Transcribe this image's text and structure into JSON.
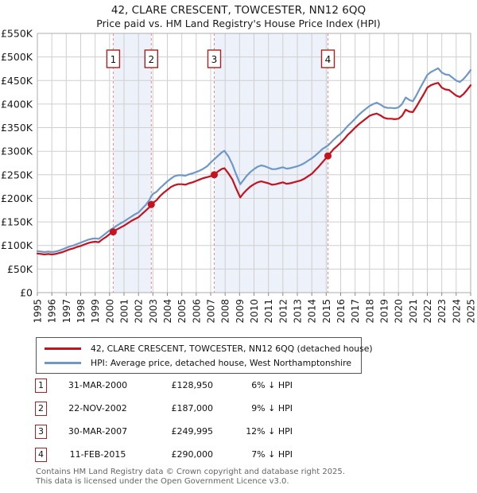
{
  "title": "42, CLARE CRESCENT, TOWCESTER, NN12 6QQ",
  "subtitle": "Price paid vs. HM Land Registry's House Price Index (HPI)",
  "legend": {
    "series1": "42, CLARE CRESCENT, TOWCESTER, NN12 6QQ (detached house)",
    "series2": "HPI: Average price, detached house, West Northamptonshire"
  },
  "transactions": [
    {
      "num": "1",
      "date": "31-MAR-2000",
      "price": "£128,950",
      "hpi_diff": "6% ↓ HPI"
    },
    {
      "num": "2",
      "date": "22-NOV-2002",
      "price": "£187,000",
      "hpi_diff": "9% ↓ HPI"
    },
    {
      "num": "3",
      "date": "30-MAR-2007",
      "price": "£249,995",
      "hpi_diff": "12% ↓ HPI"
    },
    {
      "num": "4",
      "date": "11-FEB-2015",
      "price": "£290,000",
      "hpi_diff": "7% ↓ HPI"
    }
  ],
  "footer": {
    "line1": "Contains HM Land Registry data © Crown copyright and database right 2025.",
    "line2": "This data is licensed under the Open Government Licence v3.0."
  },
  "chart_data": {
    "type": "line",
    "title": "42, CLARE CRESCENT, TOWCESTER, NN12 6QQ — Price paid vs. HM Land Registry's House Price Index (HPI)",
    "x_range": [
      1995,
      2025
    ],
    "y_range": [
      0,
      550
    ],
    "y_unit": "£ thousands",
    "grid": true,
    "legend_position": "below",
    "x_ticks": [
      1995,
      1996,
      1997,
      1998,
      1999,
      2000,
      2001,
      2002,
      2003,
      2004,
      2005,
      2006,
      2007,
      2008,
      2009,
      2010,
      2011,
      2012,
      2013,
      2014,
      2015,
      2016,
      2017,
      2018,
      2019,
      2020,
      2021,
      2022,
      2023,
      2024,
      2025
    ],
    "y_ticks": [
      {
        "value": 0,
        "label": "£0"
      },
      {
        "value": 50,
        "label": "£50K"
      },
      {
        "value": 100,
        "label": "£100K"
      },
      {
        "value": 150,
        "label": "£150K"
      },
      {
        "value": 200,
        "label": "£200K"
      },
      {
        "value": 250,
        "label": "£250K"
      },
      {
        "value": 300,
        "label": "£300K"
      },
      {
        "value": 350,
        "label": "£350K"
      },
      {
        "value": 400,
        "label": "£400K"
      },
      {
        "value": 450,
        "label": "£450K"
      },
      {
        "value": 500,
        "label": "£500K"
      },
      {
        "value": 550,
        "label": "£550K"
      }
    ],
    "colors": {
      "price": "#c5121f",
      "hpi": "#6e98c8",
      "sale_line": "#ea8a8a",
      "band": "#edf1fa",
      "grid": "#cfcfcf",
      "border": "#adadad",
      "badge": "#a92222"
    },
    "shaded_spans": [
      [
        2000.25,
        2002.89
      ],
      [
        2007.25,
        2015.12
      ]
    ],
    "sales": [
      {
        "label": "1",
        "year": 2000.25,
        "price_k": 128.95,
        "date": "31-MAR-2000",
        "pct_below_hpi": "6%"
      },
      {
        "label": "2",
        "year": 2002.89,
        "price_k": 187.0,
        "date": "22-NOV-2002",
        "pct_below_hpi": "9%"
      },
      {
        "label": "3",
        "year": 2007.25,
        "price_k": 249.995,
        "date": "30-MAR-2007",
        "pct_below_hpi": "12%"
      },
      {
        "label": "4",
        "year": 2015.12,
        "price_k": 290.0,
        "date": "11-FEB-2015",
        "pct_below_hpi": "7%"
      }
    ],
    "series": [
      {
        "id": "hpi",
        "name": "HPI: Average price, detached house, West Northamptonshire",
        "color": "#6e98c8",
        "points": [
          [
            1995.0,
            88
          ],
          [
            1995.25,
            87
          ],
          [
            1995.5,
            86
          ],
          [
            1995.75,
            87
          ],
          [
            1996.0,
            86
          ],
          [
            1996.25,
            87
          ],
          [
            1996.5,
            89
          ],
          [
            1996.75,
            92
          ],
          [
            1997.0,
            95
          ],
          [
            1997.25,
            98
          ],
          [
            1997.5,
            100
          ],
          [
            1997.75,
            103
          ],
          [
            1998.0,
            106
          ],
          [
            1998.25,
            109
          ],
          [
            1998.5,
            112
          ],
          [
            1998.75,
            114
          ],
          [
            1999.0,
            115
          ],
          [
            1999.25,
            114
          ],
          [
            1999.5,
            120
          ],
          [
            1999.75,
            126
          ],
          [
            2000.0,
            132
          ],
          [
            2000.25,
            137
          ],
          [
            2000.5,
            142
          ],
          [
            2000.75,
            147
          ],
          [
            2001.0,
            151
          ],
          [
            2001.25,
            156
          ],
          [
            2001.5,
            161
          ],
          [
            2001.75,
            166
          ],
          [
            2002.0,
            170
          ],
          [
            2002.25,
            178
          ],
          [
            2002.5,
            186
          ],
          [
            2002.75,
            196
          ],
          [
            2002.89,
            205
          ],
          [
            2003.0,
            209
          ],
          [
            2003.25,
            214
          ],
          [
            2003.5,
            222
          ],
          [
            2003.75,
            229
          ],
          [
            2004.0,
            236
          ],
          [
            2004.25,
            242
          ],
          [
            2004.5,
            247
          ],
          [
            2004.75,
            249
          ],
          [
            2005.0,
            249
          ],
          [
            2005.25,
            248
          ],
          [
            2005.5,
            251
          ],
          [
            2005.75,
            253
          ],
          [
            2006.0,
            256
          ],
          [
            2006.25,
            259
          ],
          [
            2006.5,
            263
          ],
          [
            2006.75,
            268
          ],
          [
            2007.0,
            276
          ],
          [
            2007.25,
            283
          ],
          [
            2007.5,
            290
          ],
          [
            2007.75,
            297
          ],
          [
            2007.95,
            301
          ],
          [
            2008.25,
            288
          ],
          [
            2008.5,
            272
          ],
          [
            2008.75,
            252
          ],
          [
            2009.05,
            230
          ],
          [
            2009.25,
            238
          ],
          [
            2009.5,
            248
          ],
          [
            2009.75,
            256
          ],
          [
            2010.0,
            262
          ],
          [
            2010.25,
            267
          ],
          [
            2010.5,
            270
          ],
          [
            2010.75,
            268
          ],
          [
            2011.0,
            265
          ],
          [
            2011.25,
            262
          ],
          [
            2011.5,
            262
          ],
          [
            2011.75,
            264
          ],
          [
            2012.0,
            266
          ],
          [
            2012.25,
            263
          ],
          [
            2012.5,
            264
          ],
          [
            2012.75,
            266
          ],
          [
            2013.0,
            268
          ],
          [
            2013.25,
            271
          ],
          [
            2013.5,
            275
          ],
          [
            2013.75,
            280
          ],
          [
            2014.0,
            285
          ],
          [
            2014.25,
            291
          ],
          [
            2014.5,
            298
          ],
          [
            2014.75,
            305
          ],
          [
            2015.12,
            312
          ],
          [
            2015.5,
            324
          ],
          [
            2015.75,
            331
          ],
          [
            2016.0,
            337
          ],
          [
            2016.25,
            345
          ],
          [
            2016.5,
            354
          ],
          [
            2016.75,
            361
          ],
          [
            2017.0,
            369
          ],
          [
            2017.25,
            377
          ],
          [
            2017.5,
            384
          ],
          [
            2017.75,
            390
          ],
          [
            2018.0,
            396
          ],
          [
            2018.25,
            400
          ],
          [
            2018.5,
            403
          ],
          [
            2018.75,
            399
          ],
          [
            2019.0,
            394
          ],
          [
            2019.25,
            392
          ],
          [
            2019.5,
            392
          ],
          [
            2019.75,
            391
          ],
          [
            2020.0,
            393
          ],
          [
            2020.25,
            400
          ],
          [
            2020.5,
            414
          ],
          [
            2020.75,
            409
          ],
          [
            2021.0,
            406
          ],
          [
            2021.25,
            419
          ],
          [
            2021.5,
            434
          ],
          [
            2021.75,
            448
          ],
          [
            2022.0,
            462
          ],
          [
            2022.25,
            468
          ],
          [
            2022.5,
            472
          ],
          [
            2022.75,
            476
          ],
          [
            2023.0,
            467
          ],
          [
            2023.25,
            463
          ],
          [
            2023.5,
            462
          ],
          [
            2023.75,
            456
          ],
          [
            2024.0,
            450
          ],
          [
            2024.25,
            447
          ],
          [
            2024.5,
            453
          ],
          [
            2024.75,
            462
          ],
          [
            2025.0,
            472
          ]
        ]
      },
      {
        "id": "price-paid",
        "name": "42, CLARE CRESCENT, TOWCESTER, NN12 6QQ (detached house)",
        "color": "#c5121f",
        "points": [
          [
            1995.0,
            83
          ],
          [
            1995.25,
            82
          ],
          [
            1995.5,
            81
          ],
          [
            1995.75,
            82
          ],
          [
            1996.0,
            81
          ],
          [
            1996.25,
            82
          ],
          [
            1996.5,
            84
          ],
          [
            1996.75,
            86
          ],
          [
            1997.0,
            89
          ],
          [
            1997.25,
            92
          ],
          [
            1997.5,
            94
          ],
          [
            1997.75,
            97
          ],
          [
            1998.0,
            99
          ],
          [
            1998.25,
            102
          ],
          [
            1998.5,
            105
          ],
          [
            1998.75,
            107
          ],
          [
            1999.0,
            108
          ],
          [
            1999.25,
            107
          ],
          [
            1999.5,
            113
          ],
          [
            1999.75,
            118
          ],
          [
            2000.0,
            124
          ],
          [
            2000.25,
            128.95
          ],
          [
            2000.5,
            134
          ],
          [
            2000.75,
            138
          ],
          [
            2001.0,
            142
          ],
          [
            2001.25,
            147
          ],
          [
            2001.5,
            152
          ],
          [
            2001.75,
            156
          ],
          [
            2002.0,
            160
          ],
          [
            2002.25,
            167
          ],
          [
            2002.5,
            174
          ],
          [
            2002.75,
            181
          ],
          [
            2002.89,
            187
          ],
          [
            2003.0,
            190
          ],
          [
            2003.25,
            196
          ],
          [
            2003.5,
            205
          ],
          [
            2003.75,
            212
          ],
          [
            2004.0,
            218
          ],
          [
            2004.25,
            224
          ],
          [
            2004.5,
            228
          ],
          [
            2004.75,
            230
          ],
          [
            2005.0,
            230
          ],
          [
            2005.25,
            229
          ],
          [
            2005.5,
            232
          ],
          [
            2005.75,
            234
          ],
          [
            2006.0,
            237
          ],
          [
            2006.25,
            240
          ],
          [
            2006.5,
            243
          ],
          [
            2006.75,
            245
          ],
          [
            2007.0,
            247
          ],
          [
            2007.25,
            249.995
          ],
          [
            2007.5,
            257
          ],
          [
            2007.75,
            262
          ],
          [
            2007.95,
            264
          ],
          [
            2008.25,
            252
          ],
          [
            2008.5,
            240
          ],
          [
            2008.75,
            222
          ],
          [
            2009.05,
            202
          ],
          [
            2009.25,
            210
          ],
          [
            2009.5,
            218
          ],
          [
            2009.75,
            225
          ],
          [
            2010.0,
            230
          ],
          [
            2010.25,
            234
          ],
          [
            2010.5,
            236
          ],
          [
            2010.75,
            234
          ],
          [
            2011.0,
            232
          ],
          [
            2011.25,
            229
          ],
          [
            2011.5,
            230
          ],
          [
            2011.75,
            232
          ],
          [
            2012.0,
            234
          ],
          [
            2012.25,
            231
          ],
          [
            2012.5,
            232
          ],
          [
            2012.75,
            234
          ],
          [
            2013.0,
            236
          ],
          [
            2013.25,
            238
          ],
          [
            2013.5,
            242
          ],
          [
            2013.75,
            247
          ],
          [
            2014.0,
            252
          ],
          [
            2014.25,
            260
          ],
          [
            2014.5,
            268
          ],
          [
            2014.75,
            277
          ],
          [
            2015.12,
            290
          ],
          [
            2015.5,
            304
          ],
          [
            2015.75,
            311
          ],
          [
            2016.0,
            318
          ],
          [
            2016.25,
            326
          ],
          [
            2016.5,
            335
          ],
          [
            2016.75,
            342
          ],
          [
            2017.0,
            350
          ],
          [
            2017.25,
            357
          ],
          [
            2017.5,
            363
          ],
          [
            2017.75,
            369
          ],
          [
            2018.0,
            375
          ],
          [
            2018.25,
            378
          ],
          [
            2018.5,
            380
          ],
          [
            2018.75,
            376
          ],
          [
            2019.0,
            371
          ],
          [
            2019.25,
            369
          ],
          [
            2019.5,
            369
          ],
          [
            2019.75,
            368
          ],
          [
            2020.0,
            369
          ],
          [
            2020.25,
            375
          ],
          [
            2020.5,
            388
          ],
          [
            2020.75,
            384
          ],
          [
            2021.0,
            383
          ],
          [
            2021.25,
            395
          ],
          [
            2021.5,
            408
          ],
          [
            2021.75,
            421
          ],
          [
            2022.0,
            435
          ],
          [
            2022.25,
            440
          ],
          [
            2022.5,
            443
          ],
          [
            2022.75,
            445
          ],
          [
            2023.0,
            435
          ],
          [
            2023.25,
            431
          ],
          [
            2023.5,
            430
          ],
          [
            2023.75,
            424
          ],
          [
            2024.0,
            418
          ],
          [
            2024.25,
            415
          ],
          [
            2024.5,
            421
          ],
          [
            2024.75,
            430
          ],
          [
            2025.0,
            440
          ]
        ]
      }
    ]
  }
}
